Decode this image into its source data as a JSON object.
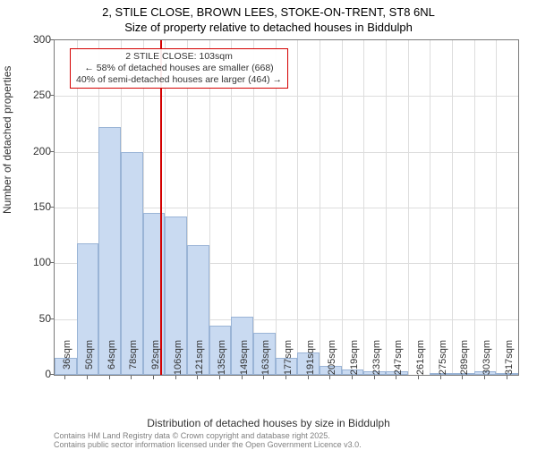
{
  "title": {
    "line1": "2, STILE CLOSE, BROWN LEES, STOKE-ON-TRENT, ST8 6NL",
    "line2": "Size of property relative to detached houses in Biddulph"
  },
  "chart": {
    "type": "histogram",
    "ylabel": "Number of detached properties",
    "xlabel": "Distribution of detached houses by size in Biddulph",
    "ylim": [
      0,
      300
    ],
    "ytick_step": 50,
    "background_color": "#ffffff",
    "grid_color": "#dddddd",
    "bar_fill": "#c9daf1",
    "bar_border": "#9ab4d6",
    "axis_color": "#7a7a7a",
    "marker_color": "#d40000",
    "marker_x_value": 103,
    "categories": [
      "36sqm",
      "50sqm",
      "64sqm",
      "78sqm",
      "92sqm",
      "106sqm",
      "121sqm",
      "135sqm",
      "149sqm",
      "163sqm",
      "177sqm",
      "191sqm",
      "205sqm",
      "219sqm",
      "233sqm",
      "247sqm",
      "261sqm",
      "275sqm",
      "289sqm",
      "303sqm",
      "317sqm"
    ],
    "values": [
      15,
      118,
      222,
      200,
      145,
      142,
      116,
      44,
      52,
      38,
      15,
      20,
      8,
      5,
      3,
      3,
      0,
      2,
      2,
      3,
      2
    ],
    "label_fontsize": 12,
    "tick_fontsize_y": 12,
    "tick_fontsize_x": 11
  },
  "annotation": {
    "line1": "2 STILE CLOSE: 103sqm",
    "line2": "← 58% of detached houses are smaller (668)",
    "line3": "40% of semi-detached houses are larger (464) →"
  },
  "footer": {
    "line1": "Contains HM Land Registry data © Crown copyright and database right 2025.",
    "line2": "Contains public sector information licensed under the Open Government Licence v3.0."
  }
}
